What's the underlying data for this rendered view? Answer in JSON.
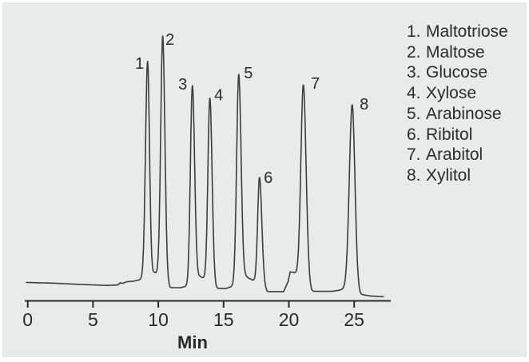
{
  "figure": {
    "background": "#e9eaea",
    "border_color": "#ffffff"
  },
  "legend": {
    "items": [
      {
        "num": "1.",
        "name": "Maltotriose"
      },
      {
        "num": "2.",
        "name": "Maltose"
      },
      {
        "num": "3.",
        "name": "Glucose"
      },
      {
        "num": "4.",
        "name": "Xylose"
      },
      {
        "num": "5.",
        "name": "Arabinose"
      },
      {
        "num": "6.",
        "name": "Ribitol"
      },
      {
        "num": "7.",
        "name": "Arabitol"
      },
      {
        "num": "8.",
        "name": "Xylitol"
      }
    ]
  },
  "chart_data": {
    "type": "line",
    "title": "",
    "xlabel": "Min",
    "ylabel": "",
    "x_ticks": [
      0,
      5,
      10,
      15,
      20,
      25
    ],
    "x_range": [
      -0.1,
      27.25
    ],
    "grid": "off",
    "legend_position": "right",
    "trace_color": "#3d3d3d",
    "axis_color": "#2a2a2a",
    "peaks": [
      {
        "num": "1",
        "name": "Maltotriose",
        "rt_min": 9.18,
        "height_rel": 89.7,
        "sigma_l": 0.16,
        "sigma_r": 0.145,
        "label_dx": -10,
        "label_dy": 3
      },
      {
        "num": "2",
        "name": "Maltose",
        "rt_min": 10.34,
        "height_rel": 100,
        "sigma_l": 0.155,
        "sigma_r": 0.165,
        "label_dx": 9,
        "label_dy": 5
      },
      {
        "num": "3",
        "name": "Glucose",
        "rt_min": 12.61,
        "height_rel": 80,
        "sigma_l": 0.15,
        "sigma_r": 0.17,
        "label_dx": -12,
        "label_dy": -1
      },
      {
        "num": "4",
        "name": "Xylose",
        "rt_min": 13.95,
        "height_rel": 75,
        "sigma_l": 0.15,
        "sigma_r": 0.17,
        "label_dx": 11,
        "label_dy": -3
      },
      {
        "num": "5",
        "name": "Arabinose",
        "rt_min": 16.16,
        "height_rel": 84.5,
        "sigma_l": 0.16,
        "sigma_r": 0.18,
        "label_dx": 12,
        "label_dy": -1
      },
      {
        "num": "6",
        "name": "Ribitol",
        "rt_min": 17.75,
        "height_rel": 42.9,
        "sigma_l": 0.14,
        "sigma_r": 0.18,
        "label_dx": 11,
        "label_dy": 1
      },
      {
        "num": "7",
        "name": "Arabitol",
        "rt_min": 21.11,
        "height_rel": 80.3,
        "sigma_l": 0.19,
        "sigma_r": 0.21,
        "label_dx": 15,
        "label_dy": -1
      },
      {
        "num": "8",
        "name": "Xylitol",
        "rt_min": 24.85,
        "height_rel": 72.3,
        "sigma_l": 0.22,
        "sigma_r": 0.21,
        "label_dx": 15,
        "label_dy": 0
      }
    ],
    "baseline_rel": [
      [
        -0.1,
        0.5
      ],
      [
        2,
        0.2
      ],
      [
        4,
        -0.3
      ],
      [
        6.1,
        -0.7
      ],
      [
        6.9,
        -0.5
      ],
      [
        7.1,
        0.4
      ],
      [
        7.25,
        0.1
      ],
      [
        7.6,
        0.8
      ],
      [
        8.1,
        1.0
      ],
      [
        8.6,
        1.6
      ],
      [
        9.18,
        3.0
      ],
      [
        9.7,
        4.5
      ],
      [
        10.34,
        3.0
      ],
      [
        10.9,
        -1.6
      ],
      [
        11.7,
        -1.6
      ],
      [
        12.2,
        -1.0
      ],
      [
        12.61,
        1.0
      ],
      [
        13.2,
        2.9
      ],
      [
        13.95,
        1.0
      ],
      [
        14.45,
        -1.9
      ],
      [
        15.2,
        -1.9
      ],
      [
        15.7,
        -1.0
      ],
      [
        16.16,
        1.5
      ],
      [
        16.7,
        2.9
      ],
      [
        17.2,
        1.5
      ],
      [
        17.75,
        0.5
      ],
      [
        18.35,
        -3.2
      ],
      [
        19.6,
        -3.2
      ],
      [
        19.95,
        1.0
      ],
      [
        20.1,
        4.8
      ],
      [
        20.4,
        4.5
      ],
      [
        21.11,
        2.0
      ],
      [
        21.75,
        -3.1
      ],
      [
        23.3,
        -3.1
      ],
      [
        23.9,
        -2.6
      ],
      [
        24.85,
        -1.0
      ],
      [
        25.45,
        -4.3
      ],
      [
        26.3,
        -5.0
      ],
      [
        27.25,
        -5.2
      ]
    ]
  }
}
